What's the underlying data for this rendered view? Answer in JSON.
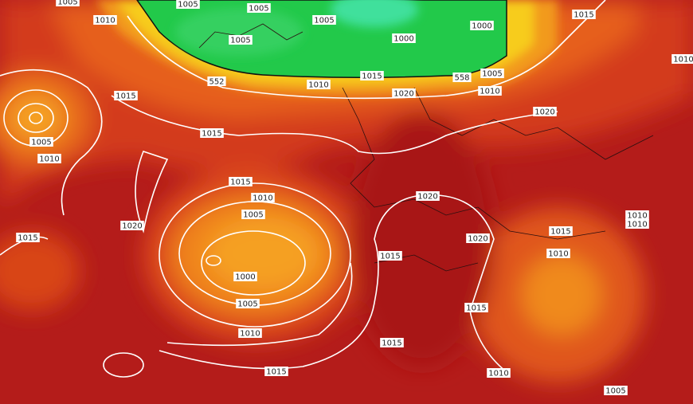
{
  "labels": [
    "1005",
    "1005",
    "1005",
    "1010",
    "1005",
    "1000",
    "1015",
    "1005",
    "1000",
    "552",
    "1010",
    "1015",
    "558",
    "1005",
    "1020",
    "1010",
    "1015",
    "1010",
    "1005",
    "1010",
    "1015",
    "1020",
    "1015",
    "1010",
    "1020",
    "1005",
    "1020",
    "1015",
    "1010",
    "1010",
    "1015",
    "1020",
    "1015",
    "1010",
    "1000",
    "1005",
    "1015",
    "1010",
    "1015",
    "1015",
    "1010",
    "1005"
  ]
}
